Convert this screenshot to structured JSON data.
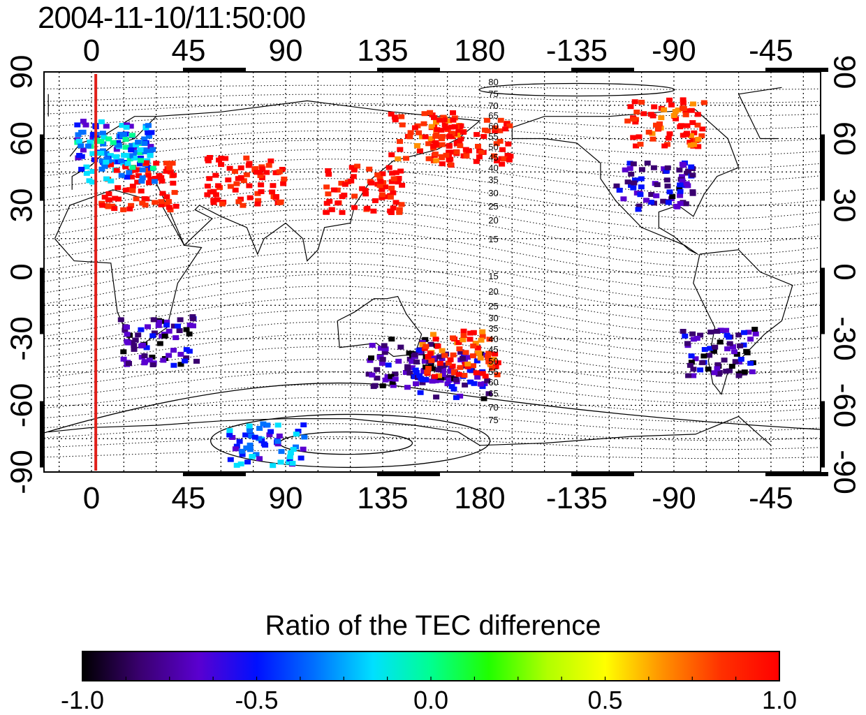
{
  "title": "2004-11-10/11:50:00",
  "map": {
    "top_axis_labels": [
      "0",
      "45",
      "90",
      "135",
      "180",
      "-135",
      "-90",
      "-45"
    ],
    "bottom_axis_labels": [
      "0",
      "45",
      "90",
      "135",
      "180",
      "-135",
      "-90",
      "-45"
    ],
    "left_axis_labels": [
      "90",
      "60",
      "30",
      "0",
      "-30",
      "-60",
      "-90"
    ],
    "right_axis_labels": [
      "90",
      "60",
      "30",
      "0",
      "-30",
      "-60",
      "-90"
    ],
    "contour_labels": [
      "80",
      "75",
      "70",
      "65",
      "60",
      "55",
      "50",
      "45",
      "40",
      "35",
      "30",
      "25",
      "20",
      "15",
      "15",
      "20",
      "25",
      "30",
      "35",
      "40",
      "45",
      "50",
      "55",
      "60",
      "65",
      "70",
      "75"
    ],
    "marker_line_color": "#e0201a",
    "marker_longitude": 2
  },
  "colorbar": {
    "title": "Ratio of the TEC difference",
    "tick_labels": [
      "-1.0",
      "-0.5",
      "0.0",
      "0.5",
      "1.0"
    ],
    "range": [
      -1.0,
      1.0
    ],
    "colors": [
      "#000000",
      "#3a0070",
      "#5a00d0",
      "#0010ff",
      "#0070ff",
      "#00e0ff",
      "#00ff90",
      "#20ff00",
      "#b0ff00",
      "#ffff00",
      "#ff9000",
      "#ff3000",
      "#ff0000"
    ]
  },
  "tec_regions": [
    {
      "lon": 10,
      "lat": 58,
      "value": -0.45
    },
    {
      "lon": 20,
      "lat": 40,
      "value": 1.0
    },
    {
      "lon": 10,
      "lat": 52,
      "value": -0.2
    },
    {
      "lon": 70,
      "lat": 42,
      "value": 1.0
    },
    {
      "lon": 125,
      "lat": 38,
      "value": 1.0
    },
    {
      "lon": 155,
      "lat": 62,
      "value": 0.9
    },
    {
      "lon": 175,
      "lat": 60,
      "value": 1.0
    },
    {
      "lon": -100,
      "lat": 40,
      "value": -0.7
    },
    {
      "lon": -95,
      "lat": 68,
      "value": 0.9
    },
    {
      "lon": -70,
      "lat": -35,
      "value": -0.75
    },
    {
      "lon": 145,
      "lat": -40,
      "value": -0.8
    },
    {
      "lon": 165,
      "lat": -45,
      "value": -0.7
    },
    {
      "lon": 30,
      "lat": -30,
      "value": -0.75
    },
    {
      "lon": 80,
      "lat": -78,
      "value": -0.4
    },
    {
      "lon": 170,
      "lat": -35,
      "value": 0.9
    }
  ]
}
